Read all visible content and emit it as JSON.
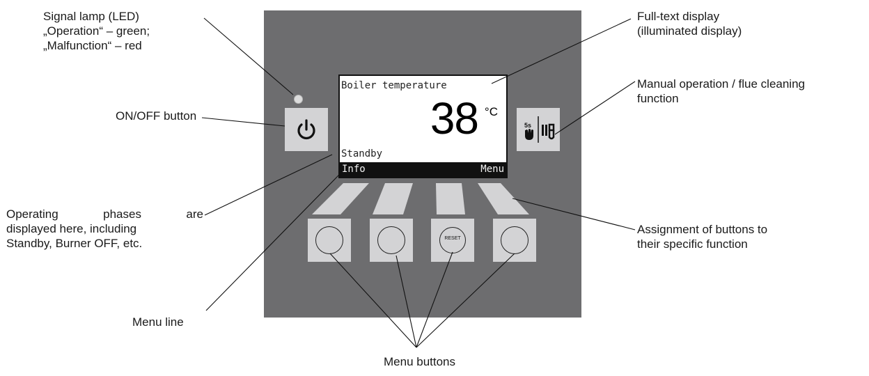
{
  "colors": {
    "panel": "#6d6d6f",
    "button_face": "#d3d3d5",
    "led": "#dcdcdc",
    "display_bg": "#ffffff",
    "menubar_bg": "#111111"
  },
  "display": {
    "title": "Boiler temperature",
    "temperature": "38",
    "unit": "°C",
    "status": "Standby",
    "softkey_left": "Info",
    "softkey_right": "Menu"
  },
  "buttons": {
    "power_icon": "power-icon",
    "manual_icon": "hand-5s-flue-cleaning-icon",
    "manual_badge": "5s",
    "reset_label": "RESET"
  },
  "labels": {
    "signal_lamp": {
      "line1": "Signal lamp (LED)",
      "line2": "„Operation“ – green;",
      "line3": "„Malfunction“ – red"
    },
    "on_off": "ON/OFF button",
    "full_text": {
      "line1": "Full-text display",
      "line2": "(illuminated display)"
    },
    "manual": {
      "line1": "Manual operation / flue cleaning",
      "line2": "function"
    },
    "phases": {
      "line1_word1": "Operating",
      "line1_word2": "phases",
      "line1_word3": "are",
      "line2": "displayed here, including",
      "line3": "Standby, Burner OFF, etc."
    },
    "assignment": {
      "line1": "Assignment of buttons to",
      "line2": "their specific function"
    },
    "menu_line": "Menu line",
    "menu_buttons": "Menu buttons"
  }
}
